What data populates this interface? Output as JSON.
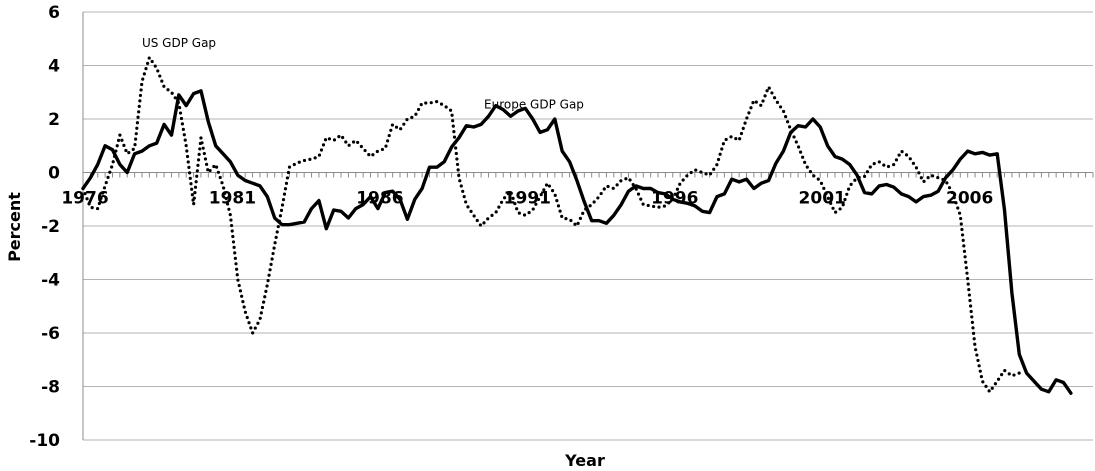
{
  "chart_data": {
    "type": "line",
    "title": "",
    "xlabel": "Year",
    "ylabel": "Percent",
    "ylim": [
      -10,
      6
    ],
    "xlim": [
      1976,
      2010.25
    ],
    "y_ticks": [
      "6",
      "4",
      "2",
      "0",
      "-2",
      "-4",
      "-6",
      "-8",
      "-10"
    ],
    "y_tick_values": [
      6,
      4,
      2,
      0,
      -2,
      -4,
      -6,
      -8,
      -10
    ],
    "x_tick_labels": [
      "1976",
      "1981",
      "1986",
      "1991",
      "1996",
      "2001",
      "2006"
    ],
    "x_tick_values": [
      1976,
      1981,
      1986,
      1991,
      1996,
      2001,
      2006
    ],
    "grid": "horizontal",
    "annotations": [
      {
        "text": "US GDP Gap",
        "x": 1978.0,
        "y": 4.7
      },
      {
        "text": "Europe GDP Gap",
        "x": 1989.6,
        "y": 2.4
      }
    ],
    "series": [
      {
        "name": "Europe GDP Gap",
        "style": "solid",
        "color": "#000000",
        "points": [
          [
            1976.0,
            -0.6
          ],
          [
            1976.25,
            -0.2
          ],
          [
            1976.5,
            0.3
          ],
          [
            1976.75,
            1.0
          ],
          [
            1977.0,
            0.85
          ],
          [
            1977.25,
            0.3
          ],
          [
            1977.5,
            0.0
          ],
          [
            1977.75,
            0.7
          ],
          [
            1978.0,
            0.8
          ],
          [
            1978.25,
            1.0
          ],
          [
            1978.5,
            1.1
          ],
          [
            1978.75,
            1.8
          ],
          [
            1979.0,
            1.4
          ],
          [
            1979.25,
            2.9
          ],
          [
            1979.5,
            2.5
          ],
          [
            1979.75,
            2.95
          ],
          [
            1980.0,
            3.05
          ],
          [
            1980.25,
            1.9
          ],
          [
            1980.5,
            1.0
          ],
          [
            1980.75,
            0.7
          ],
          [
            1981.0,
            0.4
          ],
          [
            1981.25,
            -0.1
          ],
          [
            1981.5,
            -0.3
          ],
          [
            1981.75,
            -0.4
          ],
          [
            1982.0,
            -0.5
          ],
          [
            1982.25,
            -0.9
          ],
          [
            1982.5,
            -1.7
          ],
          [
            1982.75,
            -1.95
          ],
          [
            1983.0,
            -1.95
          ],
          [
            1983.25,
            -1.9
          ],
          [
            1983.5,
            -1.85
          ],
          [
            1983.75,
            -1.35
          ],
          [
            1984.0,
            -1.05
          ],
          [
            1984.25,
            -2.1
          ],
          [
            1984.5,
            -1.4
          ],
          [
            1984.75,
            -1.45
          ],
          [
            1985.0,
            -1.7
          ],
          [
            1985.25,
            -1.35
          ],
          [
            1985.5,
            -1.2
          ],
          [
            1985.75,
            -0.9
          ],
          [
            1986.0,
            -1.35
          ],
          [
            1986.25,
            -0.75
          ],
          [
            1986.5,
            -0.7
          ],
          [
            1986.75,
            -1.0
          ],
          [
            1987.0,
            -1.75
          ],
          [
            1987.25,
            -1.0
          ],
          [
            1987.5,
            -0.6
          ],
          [
            1987.75,
            0.2
          ],
          [
            1988.0,
            0.2
          ],
          [
            1988.25,
            0.4
          ],
          [
            1988.5,
            0.95
          ],
          [
            1988.75,
            1.3
          ],
          [
            1989.0,
            1.75
          ],
          [
            1989.25,
            1.7
          ],
          [
            1989.5,
            1.8
          ],
          [
            1989.75,
            2.1
          ],
          [
            1990.0,
            2.5
          ],
          [
            1990.25,
            2.35
          ],
          [
            1990.5,
            2.1
          ],
          [
            1990.75,
            2.3
          ],
          [
            1991.0,
            2.4
          ],
          [
            1991.25,
            2.0
          ],
          [
            1991.5,
            1.5
          ],
          [
            1991.75,
            1.6
          ],
          [
            1992.0,
            2.0
          ],
          [
            1992.25,
            0.8
          ],
          [
            1992.5,
            0.4
          ],
          [
            1992.75,
            -0.3
          ],
          [
            1993.0,
            -1.1
          ],
          [
            1993.25,
            -1.8
          ],
          [
            1993.5,
            -1.8
          ],
          [
            1993.75,
            -1.9
          ],
          [
            1994.0,
            -1.6
          ],
          [
            1994.25,
            -1.2
          ],
          [
            1994.5,
            -0.7
          ],
          [
            1994.75,
            -0.5
          ],
          [
            1995.0,
            -0.6
          ],
          [
            1995.25,
            -0.6
          ],
          [
            1995.5,
            -0.75
          ],
          [
            1995.75,
            -0.8
          ],
          [
            1996.0,
            -1.0
          ],
          [
            1996.25,
            -1.1
          ],
          [
            1996.5,
            -1.15
          ],
          [
            1996.75,
            -1.25
          ],
          [
            1997.0,
            -1.45
          ],
          [
            1997.25,
            -1.5
          ],
          [
            1997.5,
            -0.9
          ],
          [
            1997.75,
            -0.8
          ],
          [
            1998.0,
            -0.25
          ],
          [
            1998.25,
            -0.35
          ],
          [
            1998.5,
            -0.25
          ],
          [
            1998.75,
            -0.6
          ],
          [
            1999.0,
            -0.4
          ],
          [
            1999.25,
            -0.3
          ],
          [
            1999.5,
            0.35
          ],
          [
            1999.75,
            0.8
          ],
          [
            2000.0,
            1.5
          ],
          [
            2000.25,
            1.75
          ],
          [
            2000.5,
            1.7
          ],
          [
            2000.75,
            2.0
          ],
          [
            2001.0,
            1.7
          ],
          [
            2001.25,
            1.0
          ],
          [
            2001.5,
            0.6
          ],
          [
            2001.75,
            0.5
          ],
          [
            2002.0,
            0.3
          ],
          [
            2002.25,
            -0.1
          ],
          [
            2002.5,
            -0.75
          ],
          [
            2002.75,
            -0.8
          ],
          [
            2003.0,
            -0.5
          ],
          [
            2003.25,
            -0.45
          ],
          [
            2003.5,
            -0.55
          ],
          [
            2003.75,
            -0.8
          ],
          [
            2004.0,
            -0.9
          ],
          [
            2004.25,
            -1.1
          ],
          [
            2004.5,
            -0.9
          ],
          [
            2004.75,
            -0.85
          ],
          [
            2005.0,
            -0.7
          ],
          [
            2005.25,
            -0.2
          ],
          [
            2005.5,
            0.1
          ],
          [
            2005.75,
            0.5
          ],
          [
            2006.0,
            0.8
          ],
          [
            2006.25,
            0.7
          ],
          [
            2006.5,
            0.75
          ],
          [
            2006.75,
            0.65
          ],
          [
            2007.0,
            0.7
          ],
          [
            2007.25,
            -1.4
          ],
          [
            2007.5,
            -4.5
          ],
          [
            2007.75,
            -6.8
          ],
          [
            2008.0,
            -7.5
          ],
          [
            2008.25,
            -7.8
          ],
          [
            2008.5,
            -8.1
          ],
          [
            2008.75,
            -8.2
          ],
          [
            2009.0,
            -7.75
          ],
          [
            2009.25,
            -7.85
          ],
          [
            2009.5,
            -8.25
          ]
        ]
      },
      {
        "name": "US GDP Gap",
        "style": "dotted",
        "color": "#000000",
        "points": [
          [
            1976.0,
            -0.6
          ],
          [
            1976.25,
            -1.3
          ],
          [
            1976.5,
            -1.35
          ],
          [
            1976.75,
            -0.5
          ],
          [
            1977.0,
            0.3
          ],
          [
            1977.25,
            1.4
          ],
          [
            1977.5,
            0.7
          ],
          [
            1977.75,
            0.9
          ],
          [
            1978.0,
            3.4
          ],
          [
            1978.25,
            4.3
          ],
          [
            1978.5,
            3.9
          ],
          [
            1978.75,
            3.2
          ],
          [
            1979.0,
            3.0
          ],
          [
            1979.25,
            2.6
          ],
          [
            1979.5,
            1.0
          ],
          [
            1979.75,
            -1.2
          ],
          [
            1980.0,
            1.3
          ],
          [
            1980.25,
            0.0
          ],
          [
            1980.5,
            0.3
          ],
          [
            1980.75,
            -0.5
          ],
          [
            1981.0,
            -1.6
          ],
          [
            1981.25,
            -4.0
          ],
          [
            1981.5,
            -5.2
          ],
          [
            1981.75,
            -6.0
          ],
          [
            1982.0,
            -5.5
          ],
          [
            1982.25,
            -4.2
          ],
          [
            1982.5,
            -2.7
          ],
          [
            1982.75,
            -1.3
          ],
          [
            1983.0,
            0.2
          ],
          [
            1983.25,
            0.35
          ],
          [
            1983.5,
            0.45
          ],
          [
            1983.75,
            0.5
          ],
          [
            1984.0,
            0.6
          ],
          [
            1984.25,
            1.3
          ],
          [
            1984.5,
            1.2
          ],
          [
            1984.75,
            1.4
          ],
          [
            1985.0,
            1.0
          ],
          [
            1985.25,
            1.2
          ],
          [
            1985.5,
            0.9
          ],
          [
            1985.75,
            0.6
          ],
          [
            1986.0,
            0.8
          ],
          [
            1986.25,
            0.9
          ],
          [
            1986.5,
            1.8
          ],
          [
            1986.75,
            1.6
          ],
          [
            1987.0,
            2.0
          ],
          [
            1987.25,
            2.1
          ],
          [
            1987.5,
            2.6
          ],
          [
            1987.75,
            2.6
          ],
          [
            1988.0,
            2.65
          ],
          [
            1988.25,
            2.5
          ],
          [
            1988.5,
            2.3
          ],
          [
            1988.75,
            -0.2
          ],
          [
            1989.0,
            -1.2
          ],
          [
            1989.25,
            -1.6
          ],
          [
            1989.5,
            -2.0
          ],
          [
            1989.75,
            -1.7
          ],
          [
            1990.0,
            -1.5
          ],
          [
            1990.25,
            -1.0
          ],
          [
            1990.5,
            -0.7
          ],
          [
            1990.75,
            -1.5
          ],
          [
            1991.0,
            -1.6
          ],
          [
            1991.25,
            -1.4
          ],
          [
            1991.5,
            -0.9
          ],
          [
            1991.75,
            -0.4
          ],
          [
            1992.0,
            -0.8
          ],
          [
            1992.25,
            -1.7
          ],
          [
            1992.5,
            -1.75
          ],
          [
            1992.75,
            -2.0
          ],
          [
            1993.0,
            -1.4
          ],
          [
            1993.25,
            -1.2
          ],
          [
            1993.5,
            -0.9
          ],
          [
            1993.75,
            -0.5
          ],
          [
            1994.0,
            -0.6
          ],
          [
            1994.25,
            -0.3
          ],
          [
            1994.5,
            -0.2
          ],
          [
            1994.75,
            -0.6
          ],
          [
            1995.0,
            -1.2
          ],
          [
            1995.25,
            -1.25
          ],
          [
            1995.5,
            -1.3
          ],
          [
            1995.75,
            -1.25
          ],
          [
            1996.0,
            -1.0
          ],
          [
            1996.25,
            -0.4
          ],
          [
            1996.5,
            -0.1
          ],
          [
            1996.75,
            0.1
          ],
          [
            1997.0,
            0.0
          ],
          [
            1997.25,
            -0.1
          ],
          [
            1997.5,
            0.3
          ],
          [
            1997.75,
            1.2
          ],
          [
            1998.0,
            1.35
          ],
          [
            1998.25,
            1.2
          ],
          [
            1998.5,
            2.0
          ],
          [
            1998.75,
            2.7
          ],
          [
            1999.0,
            2.5
          ],
          [
            1999.25,
            3.2
          ],
          [
            1999.5,
            2.7
          ],
          [
            1999.75,
            2.3
          ],
          [
            2000.0,
            1.6
          ],
          [
            2000.25,
            1.0
          ],
          [
            2000.5,
            0.3
          ],
          [
            2000.75,
            -0.1
          ],
          [
            2001.0,
            -0.3
          ],
          [
            2001.25,
            -0.9
          ],
          [
            2001.5,
            -1.5
          ],
          [
            2001.75,
            -1.3
          ],
          [
            2002.0,
            -0.5
          ],
          [
            2002.25,
            -0.2
          ],
          [
            2002.5,
            -0.15
          ],
          [
            2002.75,
            0.3
          ],
          [
            2003.0,
            0.4
          ],
          [
            2003.25,
            0.2
          ],
          [
            2003.5,
            0.3
          ],
          [
            2003.75,
            0.8
          ],
          [
            2004.0,
            0.6
          ],
          [
            2004.25,
            0.2
          ],
          [
            2004.5,
            -0.35
          ],
          [
            2004.75,
            -0.1
          ],
          [
            2005.0,
            -0.2
          ],
          [
            2005.25,
            -0.3
          ],
          [
            2005.5,
            -0.8
          ],
          [
            2005.75,
            -1.6
          ],
          [
            2006.0,
            -4.0
          ],
          [
            2006.25,
            -6.5
          ],
          [
            2006.5,
            -7.8
          ],
          [
            2006.75,
            -8.2
          ],
          [
            2007.0,
            -7.8
          ],
          [
            2007.25,
            -7.4
          ],
          [
            2007.5,
            -7.6
          ],
          [
            2007.75,
            -7.5
          ]
        ]
      }
    ]
  }
}
